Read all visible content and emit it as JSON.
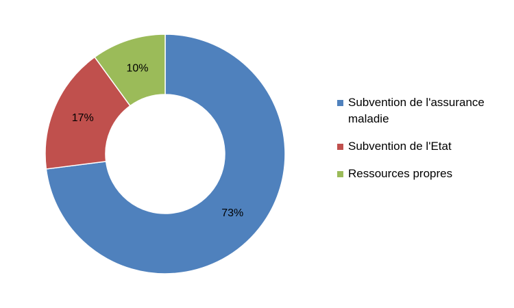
{
  "chart_data": {
    "type": "donut",
    "categories": [
      "Subvention de l'assurance maladie",
      "Subvention de l'Etat",
      "Ressources propres"
    ],
    "values": [
      73,
      17,
      10
    ],
    "value_labels": [
      "73%",
      "17%",
      "10%"
    ],
    "colors": [
      "#4f81bd",
      "#c0504d",
      "#9bbb59"
    ],
    "legend": "right"
  }
}
